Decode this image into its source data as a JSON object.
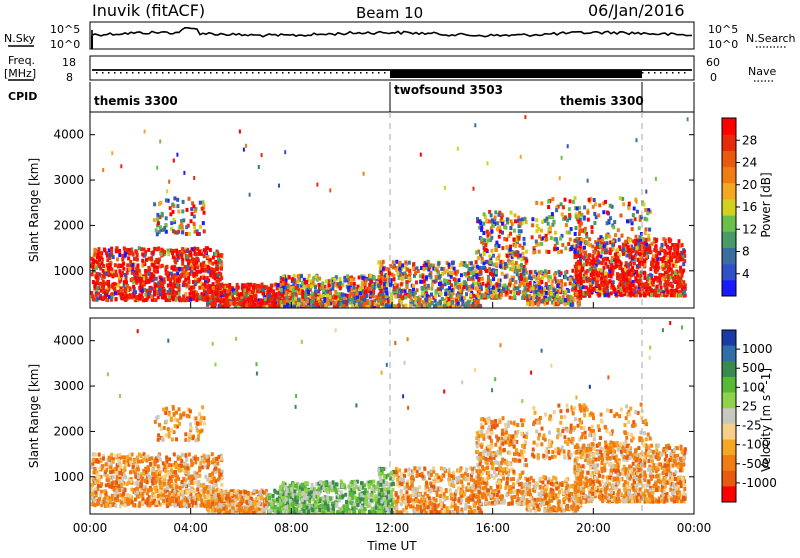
{
  "header": {
    "station": "Inuvik (fitACF)",
    "beam": "Beam 10",
    "date": "06/Jan/2016"
  },
  "top_panels": {
    "nsky": {
      "label": "N.Sky",
      "ticks": [
        "10^5",
        "10^0"
      ],
      "right_label": "N.Search",
      "right_ticks": [
        "10^5",
        "10^0"
      ]
    },
    "freq": {
      "label_line1": "Freq.",
      "label_line2": "[MHz]",
      "ticks": [
        "18",
        "8"
      ],
      "right_label": "Nave",
      "right_ticks": [
        "60",
        "0"
      ]
    },
    "cpid": {
      "label": "CPID",
      "segments": [
        {
          "name": "themis 3300",
          "start": 0.0,
          "end": 12.0
        },
        {
          "name": "twofsound 3503",
          "start": 12.0,
          "end": 22.0
        },
        {
          "name": "themis 3300",
          "start": 22.0,
          "end": 24.0
        }
      ]
    }
  },
  "chart_data": [
    {
      "type": "heatmap",
      "name": "power",
      "title": "",
      "xlabel": "",
      "ylabel": "Slant Range [km]",
      "x_range": [
        0,
        24
      ],
      "ylim": [
        180,
        4500
      ],
      "ytick_labels": [
        "1000",
        "2000",
        "3000",
        "4000"
      ],
      "ytick_values": [
        1000,
        2000,
        3000,
        4000
      ],
      "colorbar": {
        "label": "Power [dB]",
        "tick_labels": [
          "4",
          "8",
          "12",
          "16",
          "20",
          "24",
          "28"
        ],
        "colors": [
          "#1a1aff",
          "#3050c8",
          "#3a6e9e",
          "#4a9a68",
          "#6cbf4a",
          "#d2d21e",
          "#f5a623",
          "#f07c14",
          "#e85a0e",
          "#e62a0a",
          "#ff0000"
        ]
      },
      "scatter_regions": [
        {
          "t0": 0.0,
          "t1": 5.2,
          "r0": 400,
          "r1": 1500,
          "dominant": "red"
        },
        {
          "t0": 4.8,
          "t1": 11.5,
          "r0": 200,
          "r1": 800,
          "dominant": "red"
        },
        {
          "t0": 11.5,
          "t1": 15.5,
          "r0": 200,
          "r1": 1200,
          "dominant": "mixed"
        },
        {
          "t0": 15.5,
          "t1": 17.5,
          "r0": 400,
          "r1": 2200,
          "dominant": "mixed"
        },
        {
          "t0": 19.0,
          "t1": 23.5,
          "r0": 500,
          "r1": 1600,
          "dominant": "red"
        },
        {
          "t0": 17.0,
          "t1": 22.0,
          "r0": 1500,
          "r1": 2600,
          "dominant": "mixed"
        }
      ]
    },
    {
      "type": "heatmap",
      "name": "velocity",
      "title": "",
      "xlabel": "Time UT",
      "ylabel": "Slant Range [km]",
      "x_range": [
        0,
        24
      ],
      "xtick_labels": [
        "00:00",
        "04:00",
        "08:00",
        "12:00",
        "16:00",
        "20:00",
        "00:00"
      ],
      "xtick_values": [
        0,
        4,
        8,
        12,
        16,
        20,
        24
      ],
      "ylim": [
        180,
        4500
      ],
      "ytick_labels": [
        "1000",
        "2000",
        "3000",
        "4000"
      ],
      "ytick_values": [
        1000,
        2000,
        3000,
        4000
      ],
      "colorbar": {
        "label": "Velocity [m s^-1]",
        "tick_labels": [
          "1000",
          "500",
          "100",
          "25",
          "-25",
          "-100",
          "-500",
          "-1000"
        ],
        "colors": [
          "#1a3aa8",
          "#2f6ea8",
          "#3a8a50",
          "#58b838",
          "#8fd24c",
          "#c8c8c0",
          "#f5d08a",
          "#f5a623",
          "#f07c14",
          "#e85a0e",
          "#ff0000"
        ]
      }
    }
  ]
}
